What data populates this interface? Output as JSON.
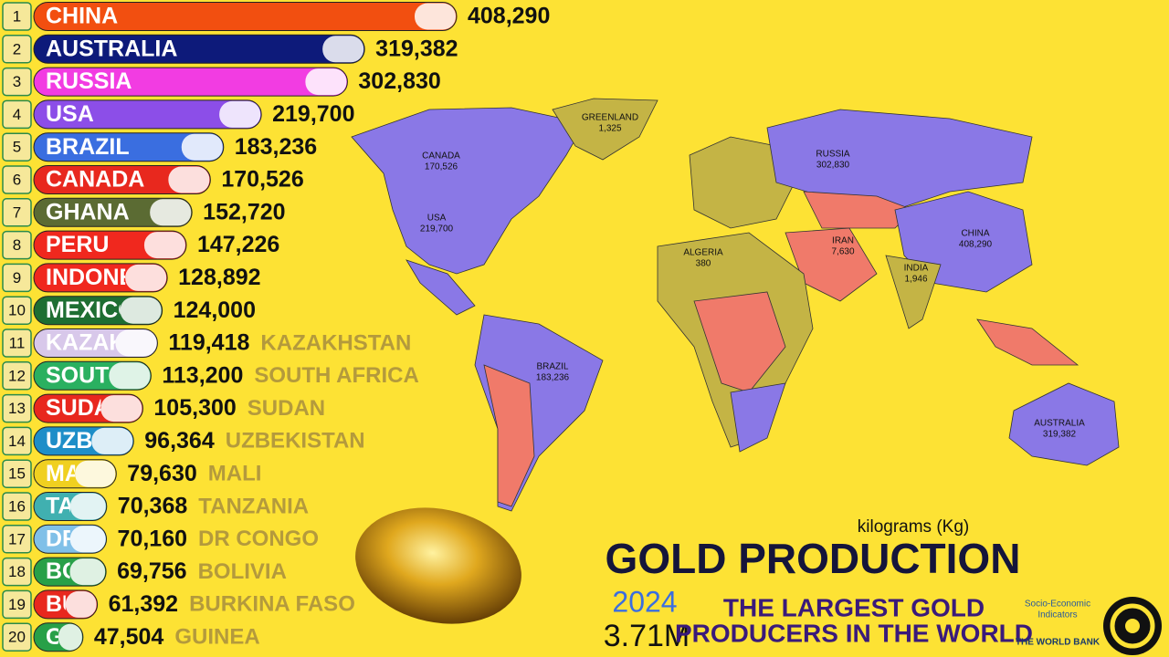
{
  "chart_data": {
    "type": "bar",
    "orientation": "horizontal",
    "ranks": [
      1,
      2,
      3,
      4,
      5,
      6,
      7,
      8,
      9,
      10,
      11,
      12,
      13,
      14,
      15,
      16,
      17,
      18,
      19,
      20
    ],
    "categories": [
      "CHINA",
      "AUSTRALIA",
      "RUSSIA",
      "USA",
      "BRAZIL",
      "CANADA",
      "GHANA",
      "PERU",
      "INDONESIA",
      "MEXICO",
      "KAZAKHSTAN",
      "SOUTH AFRICA",
      "SUDAN",
      "UZBEKISTAN",
      "MALI",
      "TANZANIA",
      "DR CONGO",
      "BOLIVIA",
      "BURKINA FASO",
      "GUINEA"
    ],
    "values": [
      408290,
      319382,
      302830,
      219700,
      183236,
      170526,
      152720,
      147226,
      128892,
      124000,
      119418,
      113200,
      105300,
      96364,
      79630,
      70368,
      70160,
      69756,
      61392,
      47504
    ],
    "value_labels": [
      "408,290",
      "319,382",
      "302,830",
      "219,700",
      "183,236",
      "170,526",
      "152,720",
      "147,226",
      "128,892",
      "124,000",
      "119,418",
      "113,200",
      "105,300",
      "96,364",
      "79,630",
      "70,368",
      "70,160",
      "69,756",
      "61,392",
      "47,504"
    ],
    "colors": [
      "#f24f10",
      "#0d1a7a",
      "#f23ce2",
      "#8c4ee8",
      "#3a6ee0",
      "#e8281e",
      "#5b6b33",
      "#f0281e",
      "#f0281e",
      "#1e6e32",
      "#d8c8ea",
      "#2ab060",
      "#e8281e",
      "#1e8ec8",
      "#f0d020",
      "#40b0b0",
      "#80c0e8",
      "#28a048",
      "#e8281e",
      "#28a048"
    ],
    "unit": "kilograms (Kg)",
    "title": "GOLD PRODUCTION",
    "year": "2024",
    "total": "3.71M",
    "subtitle_lines": [
      "THE LARGEST GOLD",
      "PRODUCERS IN THE WORLD"
    ],
    "source_lines": [
      "Socio-Economic",
      "Indicators",
      "THE WORLD BANK"
    ],
    "map_labels": [
      {
        "name": "GREENLAND",
        "value": "1,325"
      },
      {
        "name": "CANADA",
        "value": "170,526"
      },
      {
        "name": "RUSSIA",
        "value": "302,830"
      },
      {
        "name": "USA",
        "value": "219,700"
      },
      {
        "name": "CHINA",
        "value": "408,290"
      },
      {
        "name": "IRAN",
        "value": "7,630"
      },
      {
        "name": "INDIA",
        "value": "1,946"
      },
      {
        "name": "ALGERIA",
        "value": "380"
      },
      {
        "name": "BRAZIL",
        "value": "183,236"
      },
      {
        "name": "AUSTRALIA",
        "value": "319,382"
      }
    ]
  }
}
